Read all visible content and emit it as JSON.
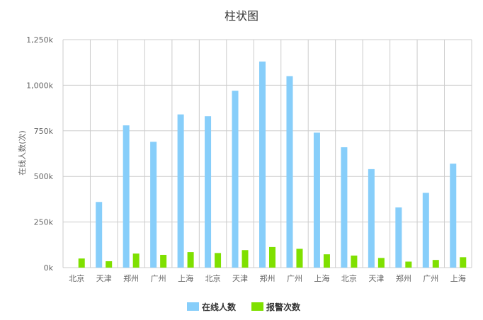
{
  "chart_data": {
    "type": "bar",
    "title": "柱状图",
    "ylabel": "在线人数(次)",
    "xlabel": "",
    "categories": [
      "北京",
      "天津",
      "郑州",
      "广州",
      "上海",
      "北京",
      "天津",
      "郑州",
      "广州",
      "上海",
      "北京",
      "天津",
      "郑州",
      "广州",
      "上海"
    ],
    "series": [
      {
        "name": "在线人数",
        "color": "#87CEFA",
        "values": [
          0,
          360000,
          780000,
          690000,
          840000,
          830000,
          970000,
          1130000,
          1050000,
          740000,
          660000,
          540000,
          330000,
          410000,
          570000
        ]
      },
      {
        "name": "报警次数",
        "color": "#7FE000",
        "values": [
          50000,
          35000,
          77000,
          70000,
          85000,
          80000,
          96000,
          113000,
          103000,
          73000,
          66000,
          53000,
          33000,
          42000,
          57000
        ]
      }
    ],
    "ylim": [
      0,
      1250000
    ],
    "yticks": [
      {
        "value": 0,
        "label": "0k"
      },
      {
        "value": 250000,
        "label": "250k"
      },
      {
        "value": 500000,
        "label": "500k"
      },
      {
        "value": 750000,
        "label": "750k"
      },
      {
        "value": 1000000,
        "label": "1,000k"
      },
      {
        "value": 1250000,
        "label": "1,250k"
      }
    ],
    "grid": true,
    "legend_position": "bottom-center"
  }
}
